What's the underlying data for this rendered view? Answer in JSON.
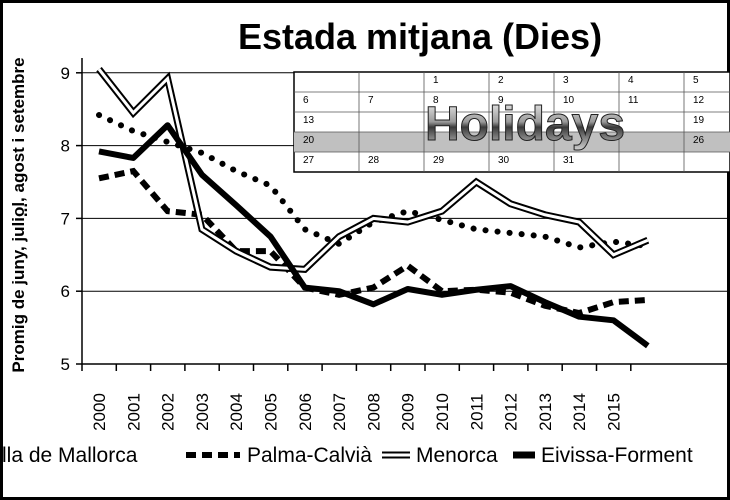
{
  "chart_data": {
    "type": "line",
    "title": "Estada mitjana (Dies)",
    "ylabel_line1": "...",
    "ylabel_line2": "Promig de juny, juliol, agost i setembre",
    "ylim": [
      5,
      9.2
    ],
    "yticks": [
      "5",
      "6",
      "7",
      "8",
      "9"
    ],
    "categories": [
      "2000",
      "2001",
      "2002",
      "2003",
      "2004",
      "2005",
      "2006",
      "2007",
      "2008",
      "2009",
      "2010",
      "2011",
      "2012",
      "2013",
      "2014",
      "2015"
    ],
    "grid": true,
    "legend_position": "bottom",
    "series": [
      {
        "name": "Illa de Mallorca",
        "style": "dotted",
        "values": [
          8.42,
          8.2,
          8.05,
          7.9,
          7.65,
          7.45,
          6.85,
          6.65,
          6.95,
          7.1,
          6.98,
          6.85,
          6.8,
          6.75,
          6.6,
          6.68
        ]
      },
      {
        "name": "Palma-Calvià",
        "style": "dashed",
        "values": [
          7.55,
          7.65,
          7.1,
          7.05,
          6.55,
          6.55,
          6.05,
          5.95,
          6.05,
          6.35,
          6.0,
          6.02,
          5.98,
          5.8,
          5.7,
          5.85
        ]
      },
      {
        "name": "Menorca",
        "style": "double",
        "values": [
          9.05,
          8.45,
          8.92,
          6.85,
          6.55,
          6.33,
          6.3,
          6.75,
          7.0,
          6.95,
          7.1,
          7.5,
          7.2,
          7.05,
          6.95,
          6.5
        ]
      },
      {
        "name": "Eivissa-Formentera",
        "style": "thick",
        "values": [
          7.92,
          7.83,
          8.28,
          7.6,
          7.18,
          6.75,
          6.05,
          6.0,
          5.82,
          6.03,
          5.95,
          6.02,
          6.07,
          5.85,
          5.65,
          5.6
        ]
      }
    ],
    "legend_labels": [
      "lla de Mallorca",
      "Palma-Calvià",
      "Menorca",
      "Eivissa-Forment"
    ],
    "last_point_eivissa": 5.25
  },
  "watermark": {
    "text": "Holidays",
    "calendar_numbers": [
      "1",
      "2",
      "3",
      "4",
      "5",
      "6",
      "7",
      "8",
      "9",
      "10",
      "11",
      "12",
      "13",
      "19",
      "20",
      "26",
      "27",
      "28",
      "29",
      "30",
      "31"
    ]
  },
  "colors": {
    "line": "#000000",
    "grid": "#000000",
    "calendar_highlight": "#c0c0c0"
  }
}
